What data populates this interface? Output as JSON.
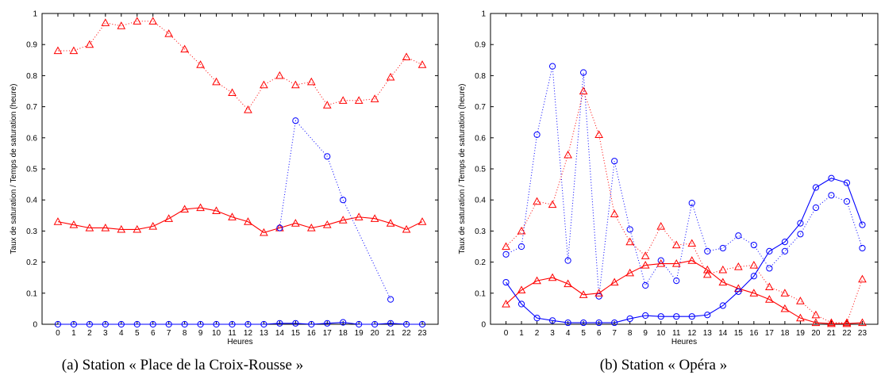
{
  "chart_data": [
    {
      "type": "line",
      "caption": "(a) Station « Place de la Croix-Rousse »",
      "xlabel": "Heures",
      "ylabel": "Taux de saturation / Temps de saturation (heure)",
      "x": [
        0,
        1,
        2,
        3,
        4,
        5,
        6,
        7,
        8,
        9,
        10,
        11,
        12,
        13,
        14,
        15,
        16,
        17,
        18,
        19,
        20,
        21,
        22,
        23
      ],
      "xlim": [
        -1,
        24
      ],
      "ylim": [
        0,
        1
      ],
      "yticks": [
        0,
        0.1,
        0.2,
        0.3,
        0.4,
        0.5,
        0.6,
        0.7,
        0.8,
        0.9,
        1
      ],
      "grid": false,
      "series": [
        {
          "color": "#ff0000",
          "line": "dotted",
          "marker": "triangle",
          "values": [
            0.88,
            0.88,
            0.9,
            0.97,
            0.96,
            0.975,
            0.975,
            0.935,
            0.885,
            0.835,
            0.78,
            0.745,
            0.69,
            0.77,
            0.8,
            0.77,
            0.78,
            0.705,
            0.72,
            0.72,
            0.725,
            0.795,
            0.86,
            0.835
          ]
        },
        {
          "color": "#ff0000",
          "line": "solid",
          "marker": "triangle",
          "values": [
            0.33,
            0.32,
            0.31,
            0.31,
            0.305,
            0.305,
            0.315,
            0.34,
            0.37,
            0.375,
            0.365,
            0.345,
            0.33,
            0.295,
            0.31,
            0.325,
            0.31,
            0.32,
            0.335,
            0.345,
            0.34,
            0.325,
            0.305,
            0.33
          ]
        },
        {
          "color": "#0000ff",
          "line": "dotted",
          "marker": "circle",
          "values": [
            null,
            null,
            null,
            null,
            null,
            null,
            null,
            null,
            null,
            null,
            null,
            null,
            null,
            null,
            0.31,
            0.655,
            null,
            0.54,
            0.4,
            null,
            null,
            0.08,
            null,
            null
          ]
        },
        {
          "color": "#0000ff",
          "line": "solid",
          "marker": "circle",
          "values": [
            0,
            0,
            0,
            0,
            0,
            0,
            0,
            0,
            0,
            0,
            0,
            0,
            0,
            0,
            0.003,
            0.003,
            0,
            0.003,
            0.006,
            0,
            0,
            0.003,
            0,
            0
          ]
        }
      ]
    },
    {
      "type": "line",
      "caption": "(b) Station « Opéra »",
      "xlabel": "Heures",
      "ylabel": "Taux de saturation / Temps de saturation (heure)",
      "x": [
        0,
        1,
        2,
        3,
        4,
        5,
        6,
        7,
        8,
        9,
        10,
        11,
        12,
        13,
        14,
        15,
        16,
        17,
        18,
        19,
        20,
        21,
        22,
        23
      ],
      "xlim": [
        -1,
        24
      ],
      "ylim": [
        0,
        1
      ],
      "yticks": [
        0,
        0.1,
        0.2,
        0.3,
        0.4,
        0.5,
        0.6,
        0.7,
        0.8,
        0.9,
        1
      ],
      "grid": false,
      "series": [
        {
          "color": "#0000ff",
          "line": "dotted",
          "marker": "circle",
          "values": [
            0.225,
            0.25,
            0.61,
            0.83,
            0.205,
            0.81,
            0.09,
            0.525,
            0.305,
            0.125,
            0.205,
            0.14,
            0.39,
            0.235,
            0.245,
            0.285,
            0.255,
            0.18,
            0.235,
            0.29,
            0.375,
            0.415,
            0.395,
            0.245
          ]
        },
        {
          "color": "#ff0000",
          "line": "dotted",
          "marker": "triangle",
          "values": [
            0.25,
            0.3,
            0.395,
            0.385,
            0.545,
            0.75,
            0.61,
            0.355,
            0.265,
            0.22,
            0.315,
            0.255,
            0.26,
            0.16,
            0.175,
            0.185,
            0.19,
            0.12,
            0.1,
            0.075,
            0.03,
            0.005,
            0.005,
            0.145
          ]
        },
        {
          "color": "#ff0000",
          "line": "solid",
          "marker": "triangle",
          "values": [
            0.065,
            0.11,
            0.14,
            0.15,
            0.13,
            0.095,
            0.1,
            0.135,
            0.165,
            0.19,
            0.195,
            0.195,
            0.205,
            0.175,
            0.135,
            0.115,
            0.1,
            0.08,
            0.05,
            0.02,
            0.005,
            0.002,
            0.002,
            0.005
          ]
        },
        {
          "color": "#0000ff",
          "line": "solid",
          "marker": "circle",
          "values": [
            0.135,
            0.065,
            0.02,
            0.012,
            0.005,
            0.005,
            0.005,
            0.005,
            0.018,
            0.028,
            0.025,
            0.025,
            0.025,
            0.03,
            0.06,
            0.105,
            0.155,
            0.235,
            0.265,
            0.325,
            0.44,
            0.47,
            0.455,
            0.32
          ]
        }
      ]
    }
  ]
}
